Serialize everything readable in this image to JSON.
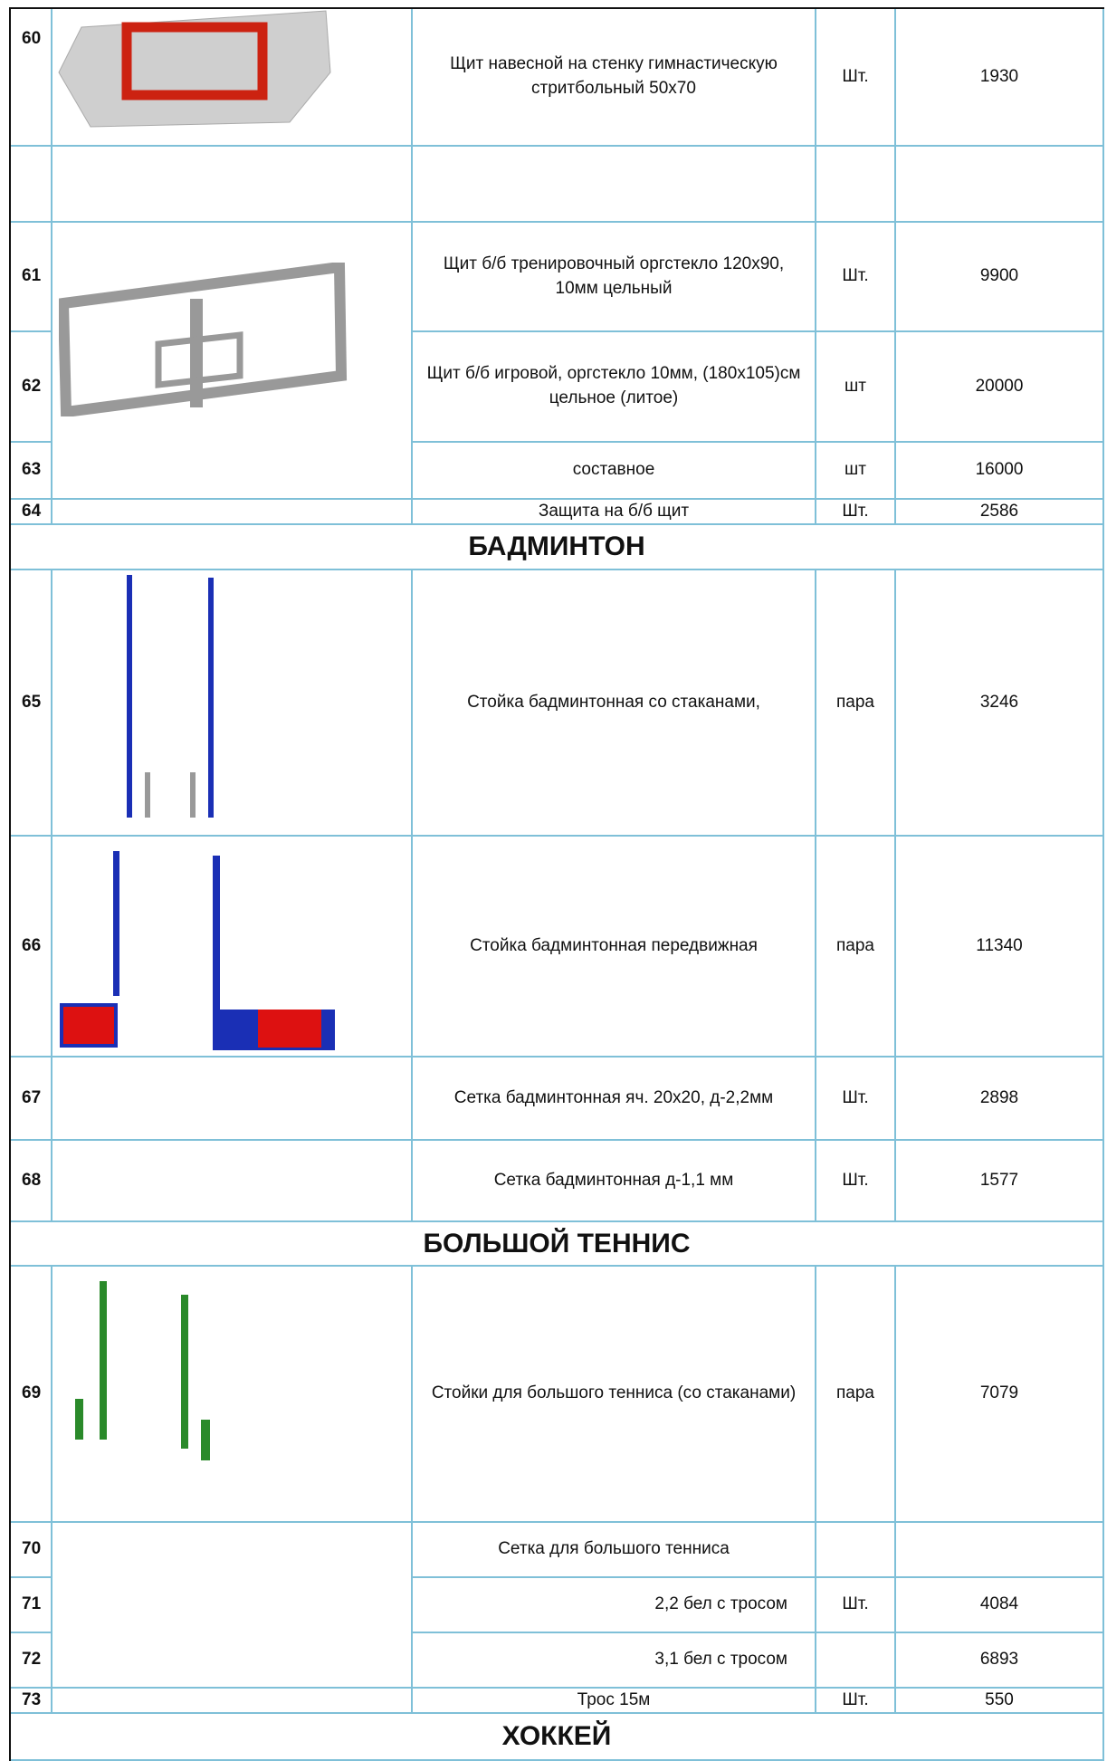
{
  "rows": [
    {
      "num": "60",
      "name": "Щит навесной на стенку гимнастическую стритбольный 50х70",
      "unit": "Шт.",
      "price": "1930"
    },
    {
      "num": "61",
      "name": "Щит б/б тренировочный оргстекло 120х90, 10мм цельный",
      "unit": "Шт.",
      "price": "9900"
    },
    {
      "num": "62",
      "name": "Щит б/б игровой, оргстекло  10мм, (180х105)см цельное (литое)",
      "unit": "шт",
      "price": "20000"
    },
    {
      "num": "63",
      "name": "составное",
      "unit": "шт",
      "price": "16000"
    },
    {
      "num": "64",
      "name": "Защита на б/б щит",
      "unit": "Шт.",
      "price": "2586"
    },
    {
      "heading": "БАДМИНТОН"
    },
    {
      "num": "65",
      "name": "Стойка бадминтонная со стаканами,",
      "unit": "пара",
      "price": "3246"
    },
    {
      "num": "66",
      "name": "Стойка бадминтонная передвижная",
      "unit": "пара",
      "price": "11340"
    },
    {
      "num": "67",
      "name": "Сетка бадминтонная яч. 20х20, д-2,2мм",
      "unit": "Шт.",
      "price": "2898"
    },
    {
      "num": "68",
      "name": "Сетка бадминтонная д-1,1 мм",
      "unit": "Шт.",
      "price": "1577"
    },
    {
      "heading": "БОЛЬШОЙ ТЕННИС"
    },
    {
      "num": "69",
      "name": "Стойки для большого тенниса (со стаканами)",
      "unit": "пара",
      "price": "7079"
    },
    {
      "num": "70",
      "name": "Сетка для большого тенниса"
    },
    {
      "num": "71",
      "name": "2,2 бел с тросом",
      "unit": "Шт.",
      "price": "4084"
    },
    {
      "num": "72",
      "name": "3,1 бел с тросом",
      "price": "6893"
    },
    {
      "num": "73",
      "name": "Трос 15м",
      "unit": "Шт.",
      "price": "550"
    },
    {
      "heading": "ХОККЕЙ"
    }
  ]
}
